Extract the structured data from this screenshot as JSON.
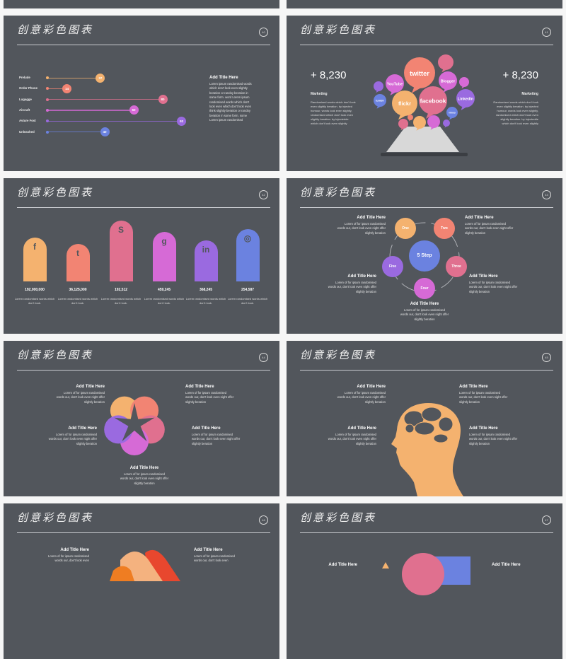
{
  "header_title": "创意彩色图表",
  "colors": {
    "slide_bg": "#52565c",
    "orange": "#f4b26f",
    "salmon": "#f28473",
    "pink": "#e0708f",
    "magenta": "#d66ad6",
    "purple": "#9a6ae0",
    "blue": "#6b82e0"
  },
  "slides": [
    {
      "number": "40"
    },
    {
      "number": "41"
    },
    {
      "number": "42"
    },
    {
      "number": "43"
    },
    {
      "number": "44"
    },
    {
      "number": "45"
    },
    {
      "number": "46"
    },
    {
      "number": "47"
    }
  ],
  "slide40": {
    "chart_data": {
      "type": "bar",
      "orientation": "horizontal",
      "categories": [
        "Prelude",
        "Order Phone",
        "Lugagge",
        "Aircraft",
        "Avture Fost",
        "Unleashed"
      ],
      "values": [
        37,
        14,
        80,
        60,
        93,
        40
      ]
    },
    "text": {
      "title": "Add Title Here",
      "body": "Lorem ipsum randomised words which don't look even slightly beration or randoy beration in some form. word Lorem ipsum randomised words which don't look even which don't look even think slightly beration or randoy beration in some form. some Lorem ipsum randomised"
    }
  },
  "slide41": {
    "left": {
      "value": "+ 8,230",
      "label": "Marketing",
      "body": "Randomised words which don't look even slightly beration. by injected humour, words look even slightly, randomised which don't look even slightly beration. by injectedde which don't look even slightly"
    },
    "right": {
      "value": "+ 8,230",
      "label": "Marketing",
      "body": "Randomised words which don't look even slightly beration. by injected humour, words look even slightly, randomised which don't look even slightly beration. by injectedde which don't look even slightly"
    },
    "bubbles": [
      "twitter",
      "facebook",
      "flickr",
      "YouTube",
      "Blogger",
      "LinkedIn",
      "vimeo",
      "tumblr"
    ]
  },
  "slide42": {
    "chart_data": {
      "type": "bar",
      "categories": [
        "facebook",
        "twitter",
        "skype",
        "google",
        "linkedin",
        "instagram"
      ],
      "values": [
        192000000,
        36125000,
        192512,
        459245,
        368245,
        254587
      ],
      "value_labels": [
        "192,000,000",
        "36,125,000",
        "192,512",
        "459,245",
        "368,245",
        "254,587"
      ]
    },
    "icons": [
      "f",
      "t",
      "S",
      "g",
      "in",
      "◎"
    ],
    "caption": "Lorem randomised words which don't look."
  },
  "slide43": {
    "center": "5 Step",
    "steps": [
      "One",
      "Two",
      "Three",
      "Four",
      "Five"
    ],
    "title": "Add Title Here",
    "body": "Lorem of for ipsum randomised words our, don't look even night offer slightly beration"
  },
  "slide44": {
    "title": "Add Title Here",
    "body": "Lorem of for ipsum randomised words our, don't look even night offer slightly beration"
  },
  "slide45": {
    "title": "Add Title Here",
    "body": "Lorem of for ipsum randomised words our, don't look even night offer slightly beration"
  },
  "slide46": {
    "title": "Add Title Here",
    "body": "Lorem of for ipsum randomised words our, don't look even"
  },
  "slide47": {
    "title": "Add Title Here"
  }
}
